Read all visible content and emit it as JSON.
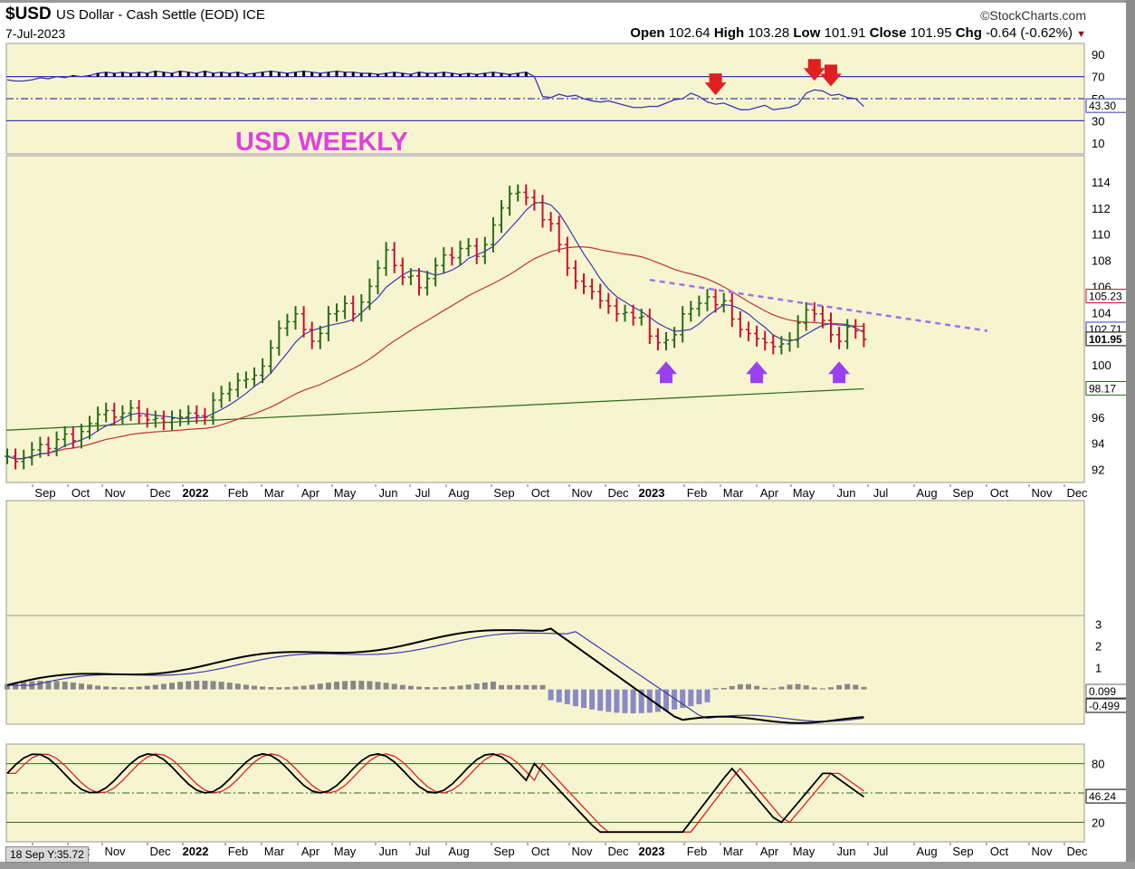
{
  "header": {
    "symbol": "$USD",
    "description": "US Dollar - Cash Settle (EOD) ICE",
    "date": "7-Jul-2023",
    "brand": "StockCharts.com",
    "open_label": "Open",
    "open": "102.64",
    "high_label": "High",
    "high": "103.28",
    "low_label": "Low",
    "low": "101.91",
    "close_label": "Close",
    "close": "101.95",
    "chg_label": "Chg",
    "chg": "-0.64 (-0.62%)"
  },
  "annotation": {
    "title": "USD WEEKLY",
    "color": "#e040e0"
  },
  "colors": {
    "bg": "#f7f5d0",
    "up": "#2a6a1a",
    "down": "#c8102e",
    "ma_short": "#3a3ab0",
    "ma_mid": "#c0303a",
    "ma_long": "#2a6a1a",
    "trend": "#a070f0",
    "arrow_up": "#9a40f0",
    "arrow_down": "#e02020"
  },
  "months": [
    "Sep",
    "Oct",
    "Nov",
    "Dec",
    "2022",
    "Feb",
    "Mar",
    "Apr",
    "May",
    "Jun",
    "Jul",
    "Aug",
    "Sep",
    "Oct",
    "Nov",
    "Dec",
    "2023",
    "Feb",
    "Mar",
    "Apr",
    "May",
    "Jun",
    "Jul",
    "Aug",
    "Sep",
    "Oct",
    "Nov",
    "Dec"
  ],
  "corner_label": "18 Sep Y:35.72",
  "chart_data": [
    {
      "type": "line",
      "name": "RSI",
      "y_ticks": [
        10,
        30,
        50,
        70,
        90
      ],
      "ylim": [
        0,
        100
      ],
      "levels": [
        70,
        50,
        30
      ],
      "last_value_label": "43.30",
      "values": [
        67,
        66,
        66,
        67,
        69,
        68,
        70,
        69,
        71,
        70,
        71,
        73,
        74,
        73,
        74,
        73,
        74,
        73,
        75,
        74,
        73,
        75,
        74,
        73,
        75,
        73,
        74,
        73,
        74,
        72,
        73,
        74,
        75,
        74,
        73,
        74,
        75,
        74,
        73,
        74,
        75,
        74,
        74,
        73,
        73,
        72,
        73,
        74,
        73,
        72,
        74,
        73,
        73,
        74,
        73,
        72,
        73,
        72,
        73,
        74,
        73,
        72,
        73,
        74,
        70,
        52,
        51,
        54,
        52,
        53,
        50,
        48,
        47,
        48,
        46,
        44,
        42,
        42,
        43,
        43,
        46,
        49,
        50,
        55,
        52,
        47,
        45,
        46,
        43,
        40,
        40,
        42,
        44,
        40,
        41,
        42,
        45,
        55,
        58,
        57,
        53,
        54,
        51,
        50,
        43
      ],
      "down_arrows_x_weeks": [
        86,
        98,
        100
      ]
    },
    {
      "type": "bar",
      "name": "$USD weekly",
      "y_ticks": [
        92,
        94,
        96,
        98,
        100,
        102,
        104,
        106,
        108,
        110,
        112,
        114
      ],
      "ylim": [
        91,
        116
      ],
      "price_labels": [
        "105.23",
        "102.71",
        "101.95",
        "98.17"
      ],
      "ohlc_close": [
        93.0,
        92.6,
        92.9,
        93.5,
        93.9,
        93.6,
        94.3,
        94.7,
        94.2,
        94.9,
        95.5,
        96.2,
        96.5,
        96.0,
        96.3,
        96.7,
        96.1,
        95.8,
        95.9,
        95.6,
        95.9,
        96.0,
        96.3,
        96.1,
        96.0,
        97.3,
        97.8,
        98.1,
        98.8,
        98.9,
        99.2,
        99.9,
        101.3,
        102.8,
        103.3,
        103.9,
        102.7,
        101.8,
        102.4,
        103.9,
        104.1,
        104.7,
        103.9,
        104.8,
        106.0,
        107.4,
        108.8,
        107.6,
        106.7,
        106.8,
        105.9,
        106.6,
        107.6,
        108.4,
        108.2,
        108.9,
        109.1,
        108.3,
        109.2,
        110.7,
        112.0,
        113.1,
        113.2,
        112.8,
        112.4,
        111.1,
        110.8,
        109.2,
        107.4,
        106.4,
        106.0,
        105.6,
        104.9,
        104.5,
        103.9,
        104.0,
        103.6,
        103.7,
        102.2,
        101.7,
        101.9,
        102.3,
        103.9,
        104.3,
        104.7,
        105.2,
        104.6,
        104.9,
        103.5,
        102.7,
        102.4,
        102.0,
        101.7,
        101.4,
        101.6,
        101.9,
        103.2,
        104.2,
        103.9,
        103.4,
        102.3,
        101.8,
        102.9,
        102.6,
        101.95
      ],
      "trendline": {
        "from_week": 78,
        "from_value": 106.5,
        "to_week": 119,
        "to_value": 102.6
      },
      "up_arrows_x_weeks": [
        80,
        91,
        101
      ]
    },
    {
      "type": "line",
      "name": "MACD",
      "y_ticks": [
        1,
        2,
        3
      ],
      "ylim": [
        -1.6,
        3.4
      ],
      "last_value_labels": [
        "0.099",
        "-0.499"
      ]
    },
    {
      "type": "line",
      "name": "Stochastic",
      "y_ticks": [
        20,
        50,
        80
      ],
      "ylim": [
        0,
        100
      ],
      "levels": [
        80,
        50,
        20
      ],
      "last_value_label": "46.24"
    }
  ]
}
